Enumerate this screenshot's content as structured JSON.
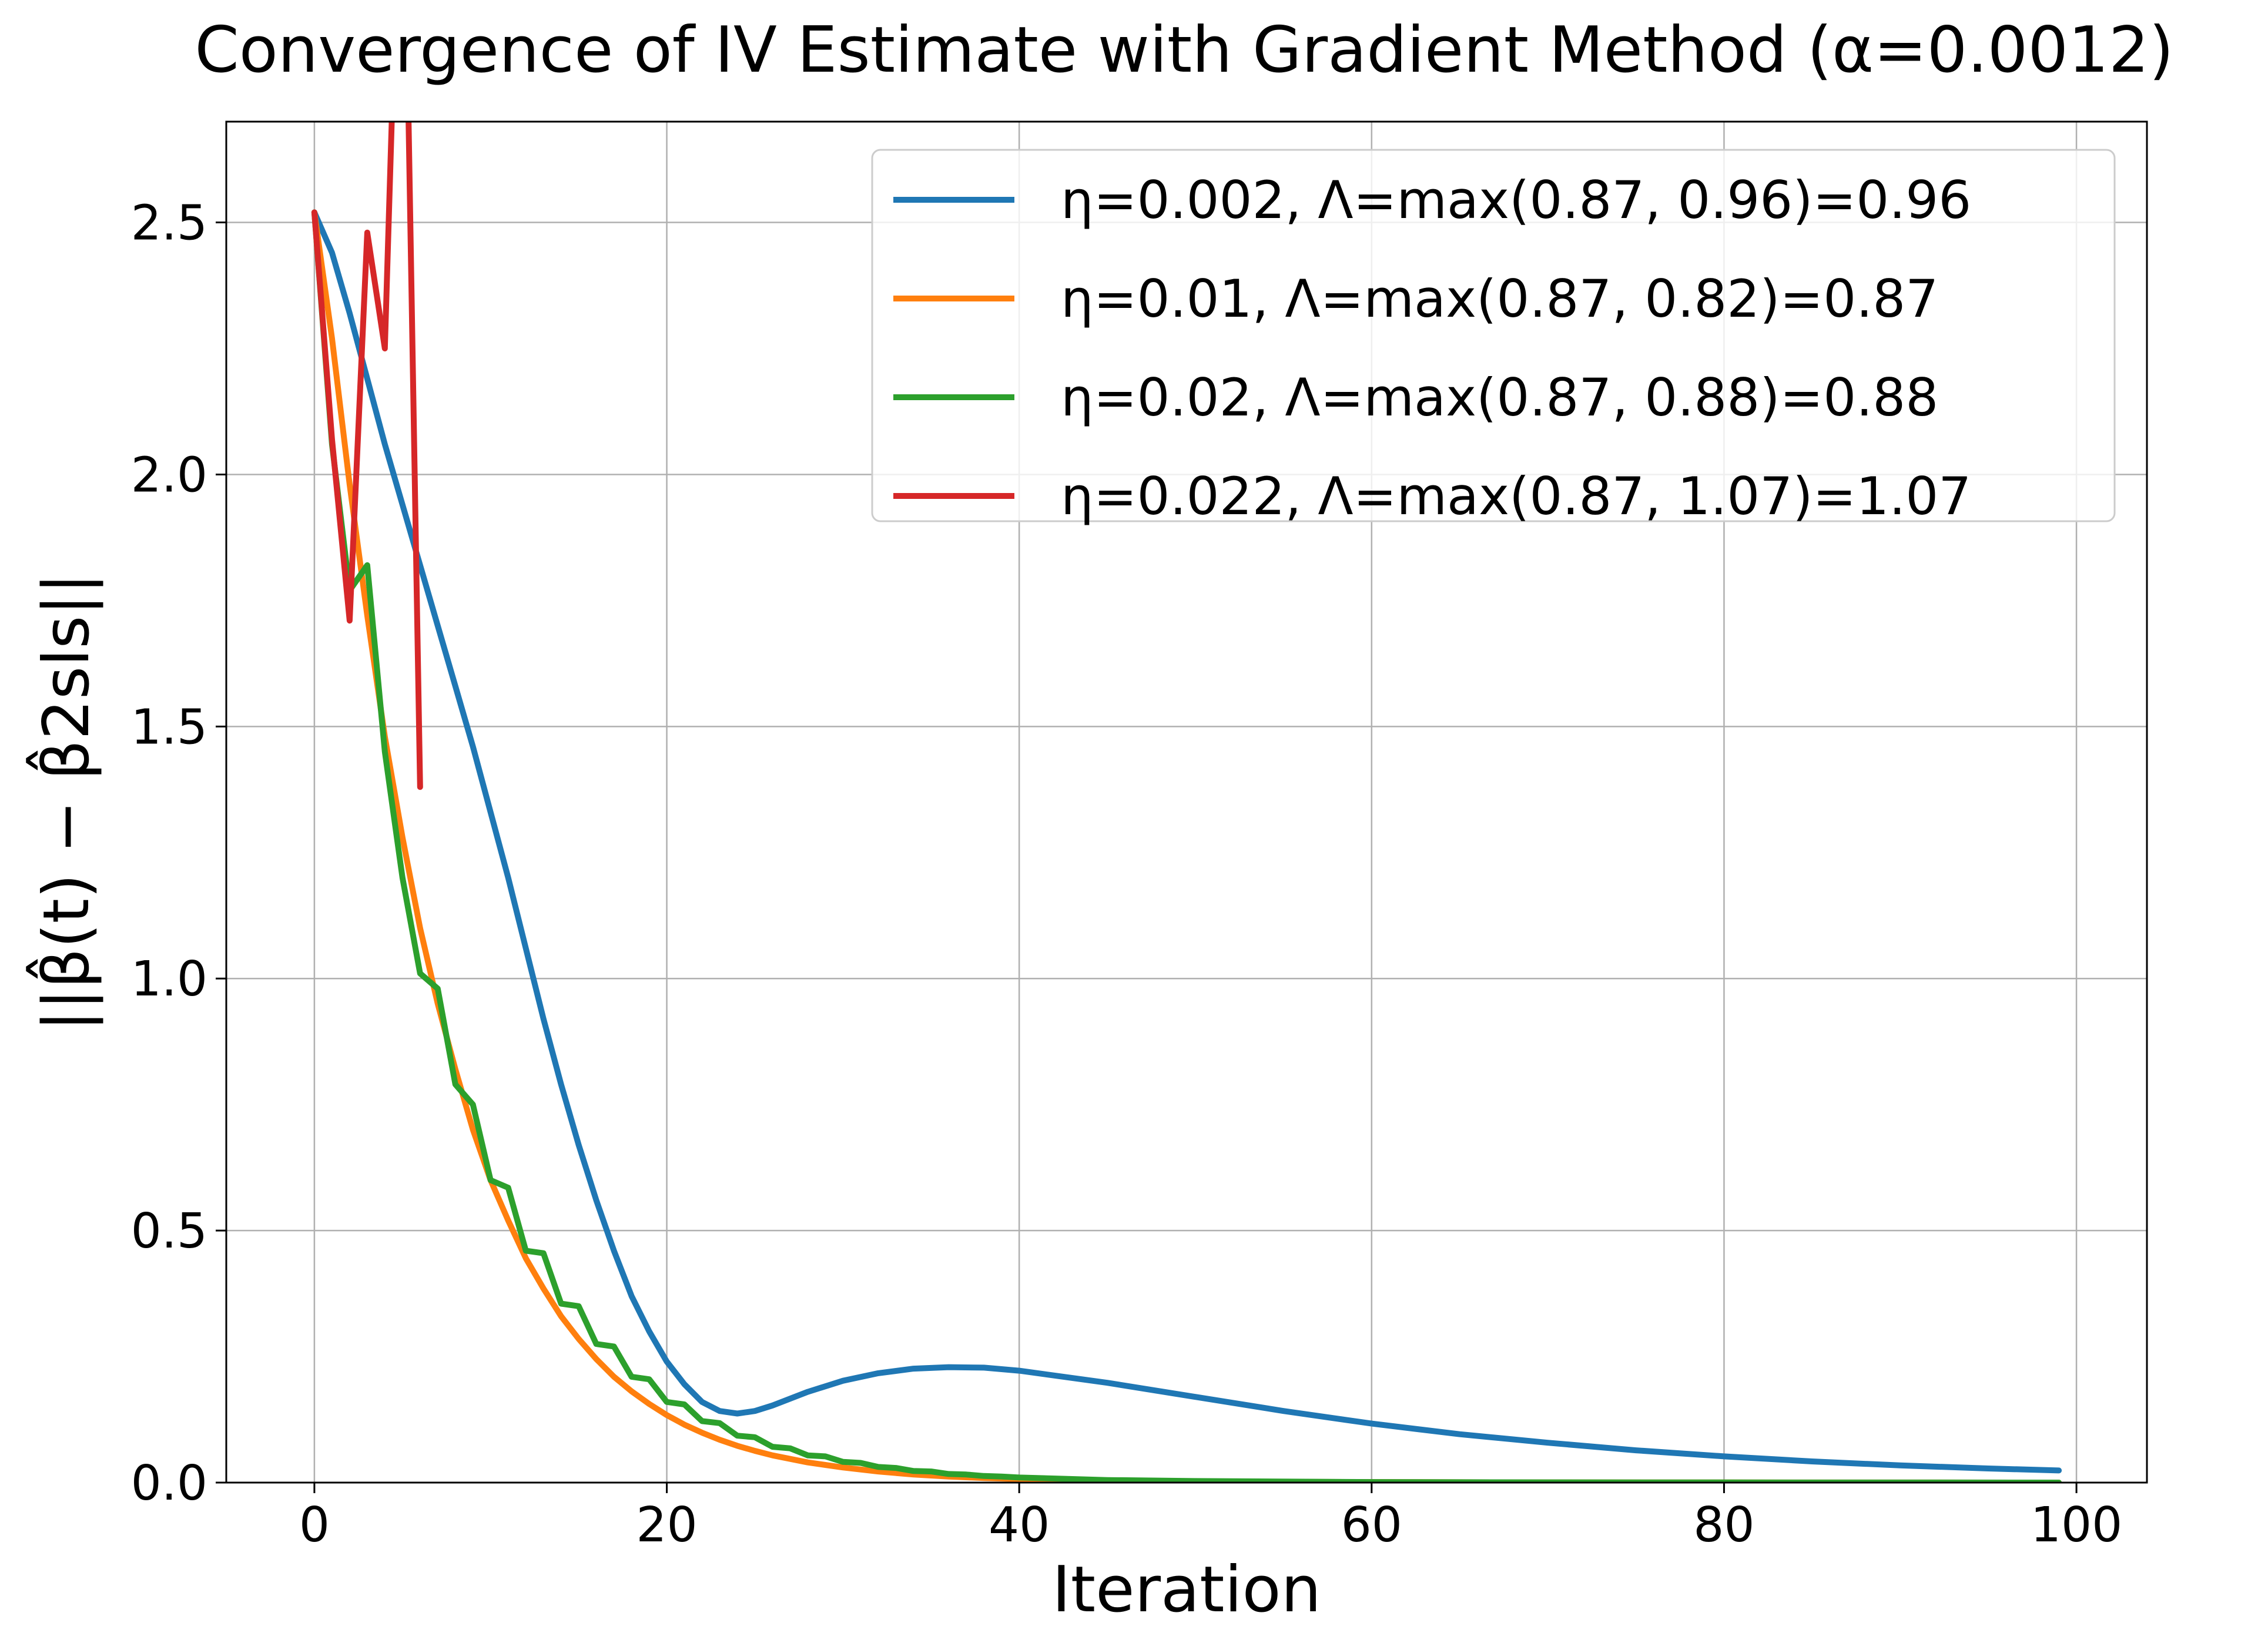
{
  "chart_data": {
    "type": "line",
    "title": "Convergence of IV Estimate with Gradient Method (α=0.0012)",
    "xlabel": "Iteration",
    "ylabel": "||β̂(t) − β̂2sls||",
    "xlim": [
      -5,
      104
    ],
    "ylim": [
      0,
      2.7
    ],
    "xticks": [
      0,
      20,
      40,
      60,
      80,
      100
    ],
    "yticks": [
      0.0,
      0.5,
      1.0,
      1.5,
      2.0,
      2.5
    ],
    "xtick_labels": [
      "0",
      "20",
      "40",
      "60",
      "80",
      "100"
    ],
    "ytick_labels": [
      "0.0",
      "0.5",
      "1.0",
      "1.5",
      "2.0",
      "2.5"
    ],
    "grid": true,
    "legend_position": "top-right",
    "series": [
      {
        "name": "η=0.002, Λ=max(0.87, 0.96)=0.96",
        "color": "#1f77b4",
        "x": [
          0,
          1,
          2,
          3,
          4,
          5,
          6,
          7,
          8,
          9,
          10,
          11,
          12,
          13,
          14,
          15,
          16,
          17,
          18,
          19,
          20,
          21,
          22,
          23,
          24,
          25,
          26,
          28,
          30,
          32,
          34,
          36,
          38,
          40,
          45,
          50,
          55,
          60,
          65,
          70,
          75,
          80,
          85,
          90,
          95,
          99
        ],
        "y": [
          2.52,
          2.44,
          2.32,
          2.19,
          2.06,
          1.94,
          1.82,
          1.7,
          1.58,
          1.46,
          1.33,
          1.2,
          1.06,
          0.92,
          0.79,
          0.67,
          0.56,
          0.46,
          0.37,
          0.3,
          0.24,
          0.195,
          0.16,
          0.142,
          0.137,
          0.142,
          0.153,
          0.18,
          0.202,
          0.217,
          0.226,
          0.229,
          0.228,
          0.222,
          0.198,
          0.17,
          0.142,
          0.117,
          0.096,
          0.079,
          0.064,
          0.052,
          0.042,
          0.034,
          0.028,
          0.024
        ]
      },
      {
        "name": "η=0.01, Λ=max(0.87, 0.82)=0.87",
        "color": "#ff7f0e",
        "x": [
          0,
          1,
          2,
          3,
          4,
          5,
          6,
          7,
          8,
          9,
          10,
          11,
          12,
          13,
          14,
          15,
          16,
          17,
          18,
          19,
          20,
          21,
          22,
          23,
          24,
          25,
          26,
          27,
          28,
          29,
          30,
          32,
          34,
          36,
          38,
          40,
          45,
          50,
          60,
          70,
          80,
          90,
          99
        ],
        "y": [
          2.52,
          2.27,
          1.98,
          1.72,
          1.48,
          1.28,
          1.1,
          0.95,
          0.82,
          0.7,
          0.6,
          0.52,
          0.445,
          0.385,
          0.33,
          0.285,
          0.245,
          0.21,
          0.181,
          0.156,
          0.134,
          0.115,
          0.099,
          0.085,
          0.073,
          0.063,
          0.054,
          0.047,
          0.04,
          0.035,
          0.03,
          0.022,
          0.016,
          0.012,
          0.009,
          0.007,
          0.004,
          0.002,
          0.001,
          0.0005,
          0.0002,
          0.0001,
          0.0
        ]
      },
      {
        "name": "η=0.02, Λ=max(0.87, 0.88)=0.88",
        "color": "#2ca02c",
        "x": [
          0,
          1,
          2,
          3,
          4,
          5,
          6,
          7,
          8,
          9,
          10,
          11,
          12,
          13,
          14,
          15,
          16,
          17,
          18,
          19,
          20,
          21,
          22,
          23,
          24,
          25,
          26,
          27,
          28,
          29,
          30,
          31,
          32,
          33,
          34,
          35,
          36,
          37,
          38,
          39,
          40,
          45,
          50,
          60,
          70,
          80,
          90,
          99
        ],
        "y": [
          2.52,
          2.06,
          1.77,
          1.82,
          1.45,
          1.2,
          1.01,
          0.98,
          0.79,
          0.75,
          0.6,
          0.585,
          0.46,
          0.455,
          0.355,
          0.35,
          0.275,
          0.27,
          0.21,
          0.205,
          0.16,
          0.155,
          0.122,
          0.118,
          0.093,
          0.09,
          0.071,
          0.068,
          0.054,
          0.052,
          0.041,
          0.039,
          0.031,
          0.029,
          0.023,
          0.022,
          0.017,
          0.016,
          0.013,
          0.012,
          0.01,
          0.005,
          0.003,
          0.001,
          0.0005,
          0.0002,
          0.0001,
          0.0
        ]
      },
      {
        "name": "η=0.022, Λ=max(0.87, 1.07)=1.07",
        "color": "#d62728",
        "x": [
          0,
          1,
          2,
          3,
          4,
          5,
          6
        ],
        "y": [
          2.52,
          2.07,
          1.71,
          2.48,
          2.25,
          3.4,
          1.38
        ]
      }
    ]
  }
}
